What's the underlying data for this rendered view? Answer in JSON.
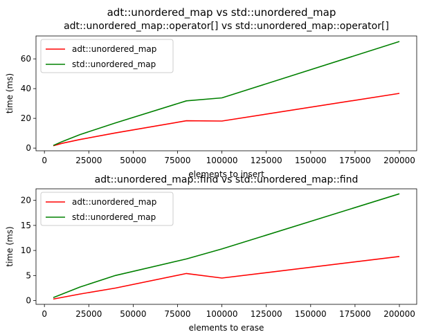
{
  "suptitle": "adt::unordered_map vs std::unordered_map",
  "chart_data": [
    {
      "type": "line",
      "title": "adt::unordered_map::operator[] vs std::unordered_map::operator[]",
      "xlabel": "elements to insert",
      "ylabel": "time (ms)",
      "x": [
        5000,
        10000,
        20000,
        40000,
        80000,
        100000,
        200000
      ],
      "xlim": [
        -4750,
        209750
      ],
      "ylim": [
        -1.8,
        75.4
      ],
      "xticks": [
        0,
        25000,
        50000,
        75000,
        100000,
        125000,
        150000,
        175000,
        200000
      ],
      "yticks": [
        0,
        20,
        40,
        60
      ],
      "legend": "top-left",
      "grid": false,
      "series": [
        {
          "name": "adt::unordered_map",
          "color": "#ff0000",
          "values": [
            1.6,
            3.2,
            5.8,
            10.2,
            18.4,
            18.2,
            36.8
          ]
        },
        {
          "name": "std::unordered_map",
          "color": "#008000",
          "values": [
            1.8,
            4.4,
            9.1,
            16.9,
            31.8,
            33.8,
            71.7
          ]
        }
      ]
    },
    {
      "type": "line",
      "title": "adt::unordered_map::find vs std::unordered_map::find",
      "xlabel": "elements to erase",
      "ylabel": "time (ms)",
      "x": [
        5000,
        20000,
        40000,
        80000,
        100000,
        200000
      ],
      "xlim": [
        -4750,
        209750
      ],
      "ylim": [
        -0.75,
        22.3
      ],
      "xticks": [
        0,
        25000,
        50000,
        75000,
        100000,
        125000,
        150000,
        175000,
        200000
      ],
      "yticks": [
        0,
        5,
        10,
        15,
        20
      ],
      "legend": "top-left",
      "grid": false,
      "series": [
        {
          "name": "adt::unordered_map",
          "color": "#ff0000",
          "values": [
            0.3,
            1.3,
            2.5,
            5.4,
            4.5,
            8.8
          ]
        },
        {
          "name": "std::unordered_map",
          "color": "#008000",
          "values": [
            0.6,
            2.7,
            5.0,
            8.3,
            10.3,
            21.3
          ]
        }
      ]
    }
  ]
}
